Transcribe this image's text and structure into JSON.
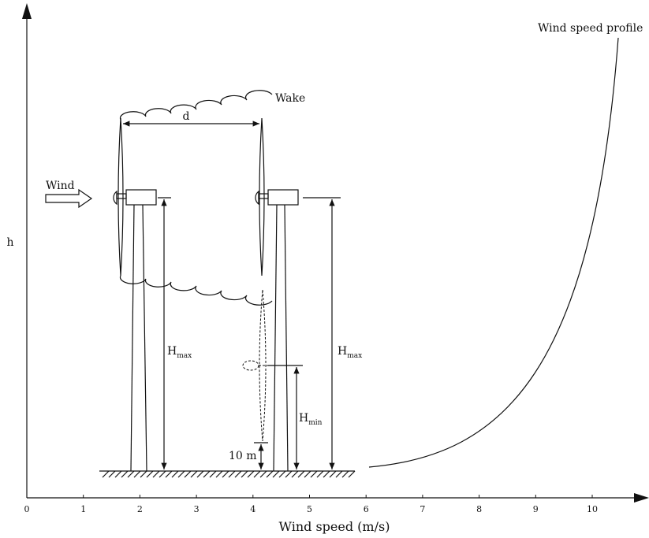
{
  "axis": {
    "x_label": "Wind speed (m/s)",
    "y_label": "h",
    "x_ticks": [
      "0",
      "1",
      "2",
      "3",
      "4",
      "5",
      "6",
      "7",
      "8",
      "9",
      "10"
    ]
  },
  "labels": {
    "profile": "Wind speed profile",
    "wake": "Wake",
    "distance": "d",
    "wind": "Wind",
    "h_max_left": {
      "main": "H",
      "sub": "max"
    },
    "h_max_right": {
      "main": "H",
      "sub": "max"
    },
    "h_min": {
      "main": "H",
      "sub": "min"
    },
    "ten_m": "10 m"
  }
}
